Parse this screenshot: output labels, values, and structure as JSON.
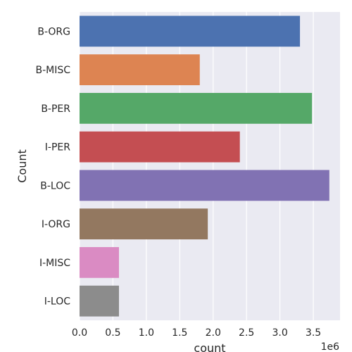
{
  "chart_data": {
    "type": "bar",
    "orientation": "horizontal",
    "categories": [
      "B-ORG",
      "B-MISC",
      "B-PER",
      "I-PER",
      "B-LOC",
      "I-ORG",
      "I-MISC",
      "I-LOC"
    ],
    "values": [
      3300000,
      1800000,
      3480000,
      2400000,
      3740000,
      1920000,
      590000,
      590000
    ],
    "colors": [
      "#4c72b0",
      "#dd8452",
      "#55a868",
      "#c44e52",
      "#8172b3",
      "#937860",
      "#da8bc3",
      "#8c8c8c"
    ],
    "xlabel": "count",
    "ylabel": "Count",
    "x_offset_text": "1e6",
    "xlim": [
      0,
      3.9
    ],
    "xticks": [
      "0.0",
      "0.5",
      "1.0",
      "1.5",
      "2.0",
      "2.5",
      "3.0",
      "3.5"
    ],
    "grid": true,
    "background": "#eaeaf2"
  }
}
